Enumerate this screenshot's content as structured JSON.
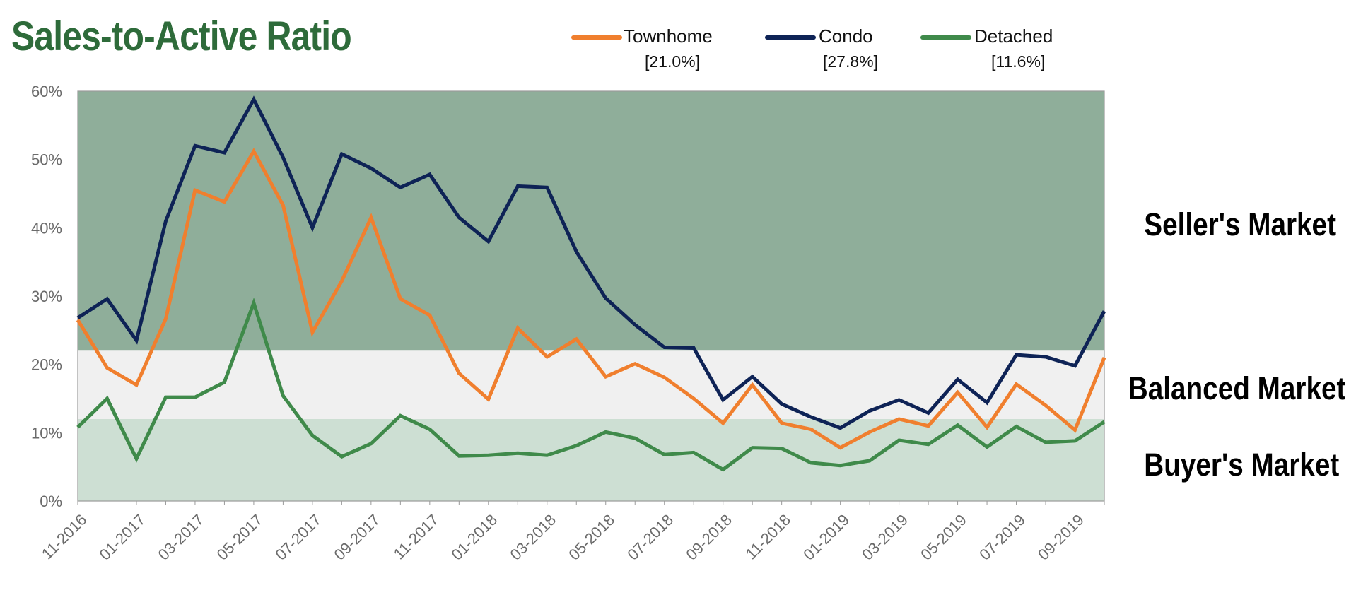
{
  "chart_data": {
    "type": "line",
    "title": "Sales-to-Active Ratio",
    "xlabel": "",
    "ylabel": "",
    "ylim": [
      0,
      60
    ],
    "y_ticks": [
      "0%",
      "10%",
      "20%",
      "30%",
      "40%",
      "50%",
      "60%"
    ],
    "x_tick_labels": [
      "11-2016",
      "01-2017",
      "03-2017",
      "05-2017",
      "07-2017",
      "09-2017",
      "11-2017",
      "01-2018",
      "03-2018",
      "05-2018",
      "07-2018",
      "09-2018",
      "11-2018",
      "01-2019",
      "03-2019",
      "05-2019",
      "07-2019",
      "09-2019"
    ],
    "x": [
      "11-2016",
      "12-2016",
      "01-2017",
      "02-2017",
      "03-2017",
      "04-2017",
      "05-2017",
      "06-2017",
      "07-2017",
      "08-2017",
      "09-2017",
      "10-2017",
      "11-2017",
      "12-2017",
      "01-2018",
      "02-2018",
      "03-2018",
      "04-2018",
      "05-2018",
      "06-2018",
      "07-2018",
      "08-2018",
      "09-2018",
      "10-2018",
      "11-2018",
      "12-2018",
      "01-2019",
      "02-2019",
      "03-2019",
      "04-2019",
      "05-2019",
      "06-2019",
      "07-2019",
      "08-2019",
      "09-2019",
      "10-2019"
    ],
    "series": [
      {
        "name": "Townhome",
        "color": "#f07f2e",
        "latest": "[21.0%]",
        "values": [
          26.5,
          19.5,
          17.0,
          26.7,
          45.5,
          43.8,
          51.2,
          43.3,
          24.7,
          32.2,
          41.5,
          29.6,
          27.2,
          18.7,
          14.9,
          25.3,
          21.1,
          23.7,
          18.2,
          20.1,
          18.1,
          15.0,
          11.4,
          17.0,
          11.4,
          10.5,
          7.8,
          10.1,
          12.0,
          11.0,
          15.9,
          10.8,
          17.1,
          14.0,
          10.4,
          21.0
        ]
      },
      {
        "name": "Condo",
        "color": "#0e2356",
        "latest": "[27.8%]",
        "values": [
          26.8,
          29.6,
          23.5,
          41.0,
          52.0,
          51.0,
          58.8,
          50.3,
          40.0,
          50.8,
          48.7,
          45.9,
          47.8,
          41.5,
          38.0,
          46.1,
          45.9,
          36.5,
          29.7,
          25.8,
          22.5,
          22.4,
          14.8,
          18.2,
          14.2,
          12.3,
          10.7,
          13.2,
          14.8,
          12.9,
          17.8,
          14.4,
          21.4,
          21.1,
          19.8,
          27.8
        ]
      },
      {
        "name": "Detached",
        "color": "#3f8a4a",
        "latest": "[11.6%]",
        "values": [
          10.8,
          15.0,
          6.2,
          15.2,
          15.2,
          17.4,
          29.0,
          15.4,
          9.6,
          6.5,
          8.4,
          12.5,
          10.5,
          6.6,
          6.7,
          7.0,
          6.7,
          8.1,
          10.1,
          9.2,
          6.8,
          7.1,
          4.6,
          7.8,
          7.7,
          5.6,
          5.2,
          5.9,
          8.9,
          8.3,
          11.1,
          7.9,
          10.9,
          8.6,
          8.8,
          11.6
        ]
      }
    ],
    "zones": [
      {
        "name": "Seller's Market",
        "from": 22,
        "to": 60,
        "color": "#8fae9a"
      },
      {
        "name": "Balanced Market",
        "from": 12,
        "to": 22,
        "color": "#f0f0f0"
      },
      {
        "name": "Buyer's Market",
        "from": 0,
        "to": 12,
        "color": "#cddfd3"
      }
    ],
    "legend_position": "top"
  }
}
